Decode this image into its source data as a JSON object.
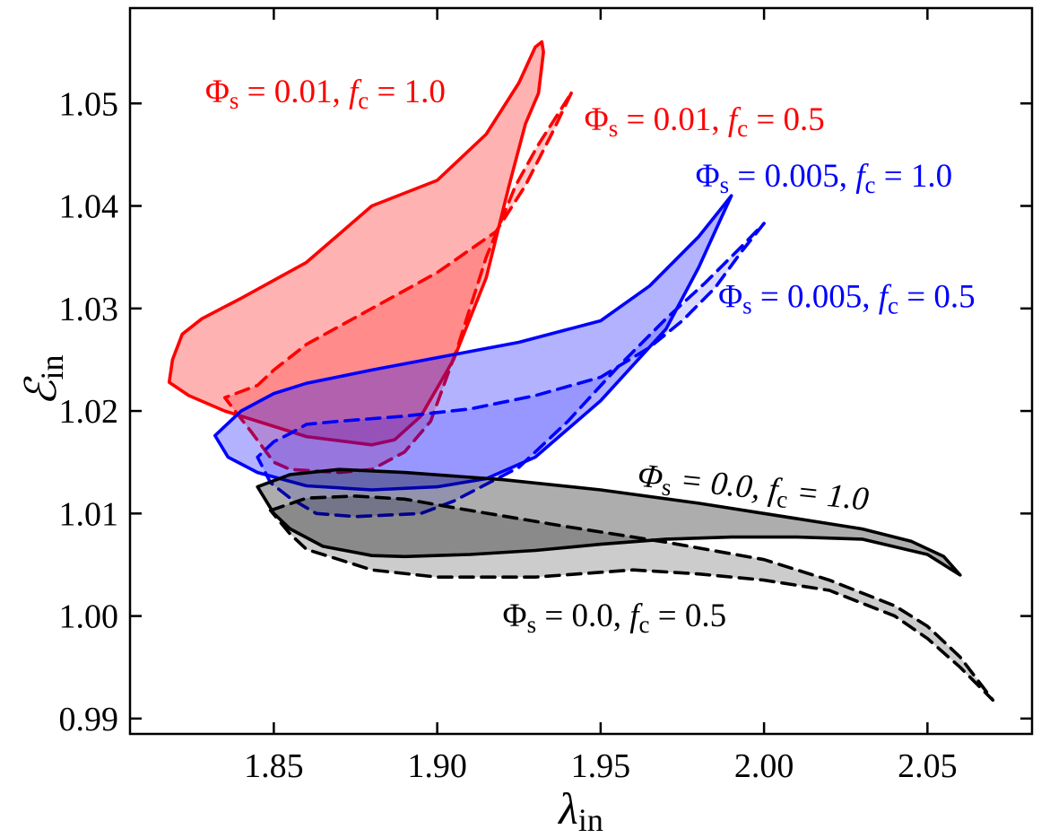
{
  "chart_data": {
    "type": "area",
    "title": "",
    "xlabel": "λin",
    "xlabel_main": "λ",
    "xlabel_sub": "in",
    "ylabel": "ℰin",
    "ylabel_main": "ℰ",
    "ylabel_sub": "in",
    "xlim": [
      1.806,
      2.082
    ],
    "ylim": [
      0.9885,
      1.0593
    ],
    "xticks": [
      1.85,
      1.9,
      1.95,
      2.0,
      2.05
    ],
    "xtick_labels": [
      "1.85",
      "1.90",
      "1.95",
      "2.00",
      "2.05"
    ],
    "yticks": [
      0.99,
      1.0,
      1.01,
      1.02,
      1.03,
      1.04,
      1.05
    ],
    "ytick_labels": [
      "0.99",
      "1.00",
      "1.01",
      "1.02",
      "1.03",
      "1.04",
      "1.05"
    ],
    "grid": false,
    "legend": "none (curves labeled by annotations)",
    "series": [
      {
        "name": "Φs = 0.01, fc = 1.0",
        "color": "#ff0000",
        "fill": "#ff0000",
        "fill_opacity": 0.3,
        "linestyle": "solid",
        "points": [
          [
            1.932,
            1.056
          ],
          [
            1.93,
            1.0555
          ],
          [
            1.925,
            1.052
          ],
          [
            1.915,
            1.047
          ],
          [
            1.9,
            1.0425
          ],
          [
            1.88,
            1.04
          ],
          [
            1.86,
            1.0345
          ],
          [
            1.84,
            1.031
          ],
          [
            1.828,
            1.029
          ],
          [
            1.822,
            1.0275
          ],
          [
            1.819,
            1.025
          ],
          [
            1.818,
            1.0228
          ],
          [
            1.824,
            1.0215
          ],
          [
            1.835,
            1.02
          ],
          [
            1.845,
            1.019
          ],
          [
            1.86,
            1.0175
          ],
          [
            1.88,
            1.0167
          ],
          [
            1.887,
            1.0172
          ],
          [
            1.895,
            1.0195
          ],
          [
            1.905,
            1.025
          ],
          [
            1.915,
            1.033
          ],
          [
            1.922,
            1.042
          ],
          [
            1.927,
            1.048
          ],
          [
            1.931,
            1.051
          ],
          [
            1.9325,
            1.055
          ],
          [
            1.932,
            1.056
          ]
        ],
        "label_text": "Φs = 0.01, fc = 1.0",
        "label_main": "Φ",
        "label_sub": "s",
        "label_rest": " = 0.01, ",
        "label_f": "f",
        "label_fsub": "c",
        "label_value": " = 1.0",
        "label_at": [
          1.829,
          1.0501
        ],
        "label_rotation": 0,
        "label_italic": false
      },
      {
        "name": "Φs = 0.01, fc = 0.5",
        "color": "#ff0000",
        "fill": "#ff0000",
        "fill_opacity": 0.22,
        "linestyle": "dashed",
        "points": [
          [
            1.941,
            1.051
          ],
          [
            1.935,
            1.047
          ],
          [
            1.927,
            1.042
          ],
          [
            1.918,
            1.0375
          ],
          [
            1.9,
            1.0335
          ],
          [
            1.88,
            1.03
          ],
          [
            1.86,
            1.0265
          ],
          [
            1.85,
            1.024
          ],
          [
            1.845,
            1.0225
          ],
          [
            1.835,
            1.0213
          ],
          [
            1.843,
            1.018
          ],
          [
            1.85,
            1.015
          ],
          [
            1.855,
            1.0143
          ],
          [
            1.87,
            1.014
          ],
          [
            1.88,
            1.0143
          ],
          [
            1.89,
            1.016
          ],
          [
            1.898,
            1.019
          ],
          [
            1.906,
            1.026
          ],
          [
            1.915,
            1.035
          ],
          [
            1.924,
            1.042
          ],
          [
            1.931,
            1.046
          ],
          [
            1.937,
            1.049
          ],
          [
            1.941,
            1.051
          ]
        ],
        "label_text": "Φs = 0.01, fc = 0.5",
        "label_main": "Φ",
        "label_sub": "s",
        "label_rest": " = 0.01, ",
        "label_f": "f",
        "label_fsub": "c",
        "label_value": " = 0.5",
        "label_at": [
          1.945,
          1.0474
        ],
        "label_rotation": 0,
        "label_italic": false
      },
      {
        "name": "Φs = 0.005, fc = 1.0",
        "color": "#0000ff",
        "fill": "#0000ff",
        "fill_opacity": 0.3,
        "linestyle": "solid",
        "points": [
          [
            1.99,
            1.041
          ],
          [
            1.98,
            1.037
          ],
          [
            1.965,
            1.0322
          ],
          [
            1.95,
            1.0288
          ],
          [
            1.925,
            1.0267
          ],
          [
            1.9,
            1.0252
          ],
          [
            1.88,
            1.024
          ],
          [
            1.86,
            1.0227
          ],
          [
            1.85,
            1.0217
          ],
          [
            1.84,
            1.02
          ],
          [
            1.835,
            1.0185
          ],
          [
            1.832,
            1.0176
          ],
          [
            1.836,
            1.0155
          ],
          [
            1.845,
            1.014
          ],
          [
            1.86,
            1.0127
          ],
          [
            1.88,
            1.0123
          ],
          [
            1.9,
            1.0126
          ],
          [
            1.915,
            1.0134
          ],
          [
            1.93,
            1.0155
          ],
          [
            1.95,
            1.021
          ],
          [
            1.97,
            1.028
          ],
          [
            1.98,
            1.034
          ],
          [
            1.985,
            1.0375
          ],
          [
            1.99,
            1.041
          ]
        ],
        "label_text": "Φs = 0.005, fc = 1.0",
        "label_main": "Φ",
        "label_sub": "s",
        "label_rest": " = 0.005, ",
        "label_f": "f",
        "label_fsub": "c",
        "label_value": " = 1.0",
        "label_at": [
          1.979,
          1.0419
        ],
        "label_rotation": 0,
        "label_italic": false
      },
      {
        "name": "Φs = 0.005, fc = 0.5",
        "color": "#0000ff",
        "fill": "#0000ff",
        "fill_opacity": 0.15,
        "linestyle": "dashed",
        "points": [
          [
            2.0,
            1.0383
          ],
          [
            1.993,
            1.0355
          ],
          [
            1.985,
            1.032
          ],
          [
            1.975,
            1.0288
          ],
          [
            1.965,
            1.0262
          ],
          [
            1.95,
            1.0233
          ],
          [
            1.93,
            1.0215
          ],
          [
            1.91,
            1.0202
          ],
          [
            1.89,
            1.0195
          ],
          [
            1.87,
            1.019
          ],
          [
            1.86,
            1.0187
          ],
          [
            1.855,
            1.0178
          ],
          [
            1.85,
            1.017
          ],
          [
            1.845,
            1.0155
          ],
          [
            1.849,
            1.013
          ],
          [
            1.855,
            1.0115
          ],
          [
            1.863,
            1.01
          ],
          [
            1.875,
            1.0097
          ],
          [
            1.895,
            1.01
          ],
          [
            1.905,
            1.0112
          ],
          [
            1.925,
            1.0145
          ],
          [
            1.94,
            1.019
          ],
          [
            1.955,
            1.0242
          ],
          [
            1.97,
            1.029
          ],
          [
            1.982,
            1.0325
          ],
          [
            1.993,
            1.036
          ],
          [
            2.0,
            1.0383
          ]
        ],
        "label_text": "Φs = 0.005, fc = 0.5",
        "label_main": "Φ",
        "label_sub": "s",
        "label_rest": " = 0.005, ",
        "label_f": "f",
        "label_fsub": "c",
        "label_value": " = 0.5",
        "label_at": [
          1.986,
          1.0301
        ],
        "label_rotation": 0,
        "label_italic": false
      },
      {
        "name": "Φs = 0.0, fc = 1.0",
        "color": "#000000",
        "fill": "#000000",
        "fill_opacity": 0.32,
        "linestyle": "solid",
        "points": [
          [
            1.845,
            1.0126
          ],
          [
            1.855,
            1.0138
          ],
          [
            1.87,
            1.0143
          ],
          [
            1.89,
            1.014
          ],
          [
            1.92,
            1.0133
          ],
          [
            1.95,
            1.0123
          ],
          [
            1.98,
            1.011
          ],
          [
            2.0,
            1.01
          ],
          [
            2.03,
            1.0085
          ],
          [
            2.045,
            1.0073
          ],
          [
            2.055,
            1.0058
          ],
          [
            2.06,
            1.004
          ],
          [
            2.05,
            1.006
          ],
          [
            2.03,
            1.0075
          ],
          [
            2.01,
            1.0077
          ],
          [
            1.99,
            1.0077
          ],
          [
            1.97,
            1.0075
          ],
          [
            1.95,
            1.007
          ],
          [
            1.93,
            1.0064
          ],
          [
            1.91,
            1.006
          ],
          [
            1.89,
            1.0058
          ],
          [
            1.88,
            1.0059
          ],
          [
            1.865,
            1.0068
          ],
          [
            1.855,
            1.0085
          ],
          [
            1.85,
            1.01
          ],
          [
            1.845,
            1.0126
          ]
        ],
        "label_text": "Φs = 0.0, fc = 1.0",
        "label_main": "Φ",
        "label_sub": "s",
        "label_rest": " = 0.0, ",
        "label_f": "f",
        "label_fsub": "c",
        "label_value": " = 1.0",
        "label_at": [
          1.961,
          1.0127
        ],
        "label_rotation": 6,
        "label_italic": true
      },
      {
        "name": "Φs = 0.0, fc = 0.5",
        "color": "#000000",
        "fill": "#000000",
        "fill_opacity": 0.2,
        "linestyle": "dashed",
        "points": [
          [
            1.849,
            1.0103
          ],
          [
            1.86,
            1.0115
          ],
          [
            1.875,
            1.0117
          ],
          [
            1.89,
            1.0114
          ],
          [
            1.91,
            1.0103
          ],
          [
            1.94,
            1.0087
          ],
          [
            1.97,
            1.0072
          ],
          [
            2.0,
            1.0055
          ],
          [
            2.02,
            1.0035
          ],
          [
            2.04,
            1.001
          ],
          [
            2.05,
            0.999
          ],
          [
            2.06,
            0.996
          ],
          [
            2.07,
            0.9918
          ],
          [
            2.06,
            0.995
          ],
          [
            2.05,
            0.9978
          ],
          [
            2.04,
            1.0
          ],
          [
            2.02,
            1.0025
          ],
          [
            2.0,
            1.0035
          ],
          [
            1.98,
            1.0041
          ],
          [
            1.96,
            1.0045
          ],
          [
            1.93,
            1.0038
          ],
          [
            1.9,
            1.0038
          ],
          [
            1.88,
            1.0045
          ],
          [
            1.87,
            1.0055
          ],
          [
            1.86,
            1.0065
          ],
          [
            1.855,
            1.008
          ],
          [
            1.849,
            1.0103
          ]
        ],
        "label_text": "Φs = 0.0, fc = 0.5",
        "label_main": "Φ",
        "label_sub": "s",
        "label_rest": " = 0.0, ",
        "label_f": "f",
        "label_fsub": "c",
        "label_value": " = 0.5",
        "label_at": [
          1.92,
          0.999
        ],
        "label_rotation": 0,
        "label_italic": false
      }
    ]
  }
}
